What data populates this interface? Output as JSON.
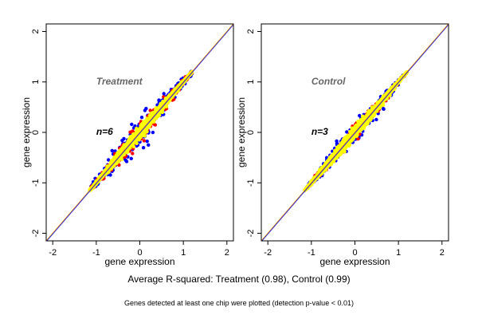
{
  "chart_data": [
    {
      "type": "scatter",
      "title": "Treatment",
      "annotation": "n=6",
      "xlabel": "gene expression",
      "ylabel": "gene expression",
      "xlim": [
        -2.15,
        2.15
      ],
      "ylim": [
        -2.15,
        2.15
      ],
      "xticks": [
        -2,
        -1,
        0,
        1,
        2
      ],
      "yticks": [
        -2,
        -1,
        0,
        1,
        2
      ],
      "grid": false,
      "reference_line": {
        "slope": 1,
        "intercept": 0,
        "colors": [
          "#ffa500",
          "#0000ff"
        ]
      },
      "series": [
        {
          "color": "#0000ff",
          "x_range": [
            -1.1,
            1.2
          ],
          "spread": 0.35
        },
        {
          "color": "#ff0000",
          "x_range": [
            -1.1,
            1.2
          ],
          "spread": 0.22
        },
        {
          "color": "#ffff00",
          "x_range": [
            -1.15,
            1.2
          ],
          "spread": 0.12
        }
      ]
    },
    {
      "type": "scatter",
      "title": "Control",
      "annotation": "n=3",
      "xlabel": "gene expression",
      "ylabel": "gene expression",
      "xlim": [
        -2.15,
        2.15
      ],
      "ylim": [
        -2.15,
        2.15
      ],
      "xticks": [
        -2,
        -1,
        0,
        1,
        2
      ],
      "yticks": [
        -2,
        -1,
        0,
        1,
        2
      ],
      "grid": false,
      "reference_line": {
        "slope": 1,
        "intercept": 0,
        "colors": [
          "#ffa500",
          "#0000ff"
        ]
      },
      "series": [
        {
          "color": "#0000ff",
          "x_range": [
            -1.1,
            1.2
          ],
          "spread": 0.22
        },
        {
          "color": "#ff0000",
          "x_range": [
            -1.1,
            1.2
          ],
          "spread": 0.15
        },
        {
          "color": "#ffff00",
          "x_range": [
            -1.15,
            1.2
          ],
          "spread": 0.12
        }
      ]
    }
  ],
  "summary": "Average R-squared: Treatment (0.98), Control (0.99)",
  "note": "Genes detected at least one chip were plotted (detection p-value < 0.01)"
}
